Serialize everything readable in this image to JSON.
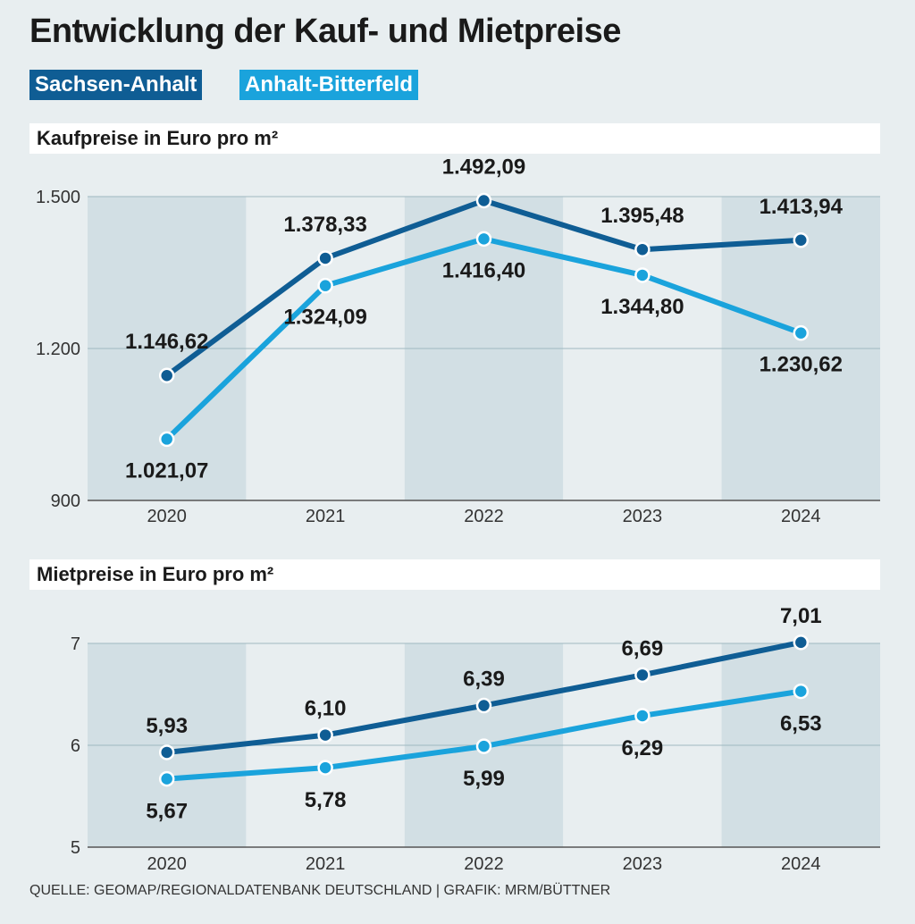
{
  "header": {
    "title": "Entwicklung der Kauf- und Mietpreise",
    "legend": [
      {
        "label": "Sachsen-Anhalt",
        "color": "#0f5d94"
      },
      {
        "label": "Anhalt-Bitterfeld",
        "color": "#1aa3dc"
      }
    ]
  },
  "footer": {
    "source": "QUELLE: GEOMAP/REGIONALDATENBANK DEUTSCHLAND | GRAFIK: MRM/BÜTTNER"
  },
  "chart_data": [
    {
      "type": "line",
      "title": "Kaufpreise in Euro pro m²",
      "categories": [
        "2020",
        "2021",
        "2022",
        "2023",
        "2024"
      ],
      "ylim": [
        900,
        1500
      ],
      "yticks": [
        900,
        1200,
        1500
      ],
      "ytick_labels": [
        "900",
        "1.200",
        "1.500"
      ],
      "series": [
        {
          "name": "Sachsen-Anhalt",
          "color": "#0f5d94",
          "values": [
            1146.62,
            1378.33,
            1492.09,
            1395.48,
            1413.94
          ],
          "labels": [
            "1.146,62",
            "1.378,33",
            "1.492,09",
            "1.395,48",
            "1.413,94"
          ],
          "label_pos": [
            "above",
            "above",
            "above",
            "above",
            "above"
          ]
        },
        {
          "name": "Anhalt-Bitterfeld",
          "color": "#1aa3dc",
          "values": [
            1021.07,
            1324.09,
            1416.4,
            1344.8,
            1230.62
          ],
          "labels": [
            "1.021,07",
            "1.324,09",
            "1.416,40",
            "1.344,80",
            "1.230,62"
          ],
          "label_pos": [
            "below",
            "below",
            "below",
            "below",
            "below"
          ]
        }
      ]
    },
    {
      "type": "line",
      "title": "Mietpreise in Euro pro m²",
      "categories": [
        "2020",
        "2021",
        "2022",
        "2023",
        "2024"
      ],
      "ylim": [
        5,
        7
      ],
      "yticks": [
        5,
        6,
        7
      ],
      "ytick_labels": [
        "5",
        "6",
        "7"
      ],
      "series": [
        {
          "name": "Sachsen-Anhalt",
          "color": "#0f5d94",
          "values": [
            5.93,
            6.1,
            6.39,
            6.69,
            7.01
          ],
          "labels": [
            "5,93",
            "6,10",
            "6,39",
            "6,69",
            "7,01"
          ],
          "label_pos": [
            "above",
            "above",
            "above",
            "above",
            "above"
          ]
        },
        {
          "name": "Anhalt-Bitterfeld",
          "color": "#1aa3dc",
          "values": [
            5.67,
            5.78,
            5.99,
            6.29,
            6.53
          ],
          "labels": [
            "5,67",
            "5,78",
            "5,99",
            "6,29",
            "6,53"
          ],
          "label_pos": [
            "below",
            "below",
            "below",
            "below",
            "below"
          ]
        }
      ]
    }
  ]
}
